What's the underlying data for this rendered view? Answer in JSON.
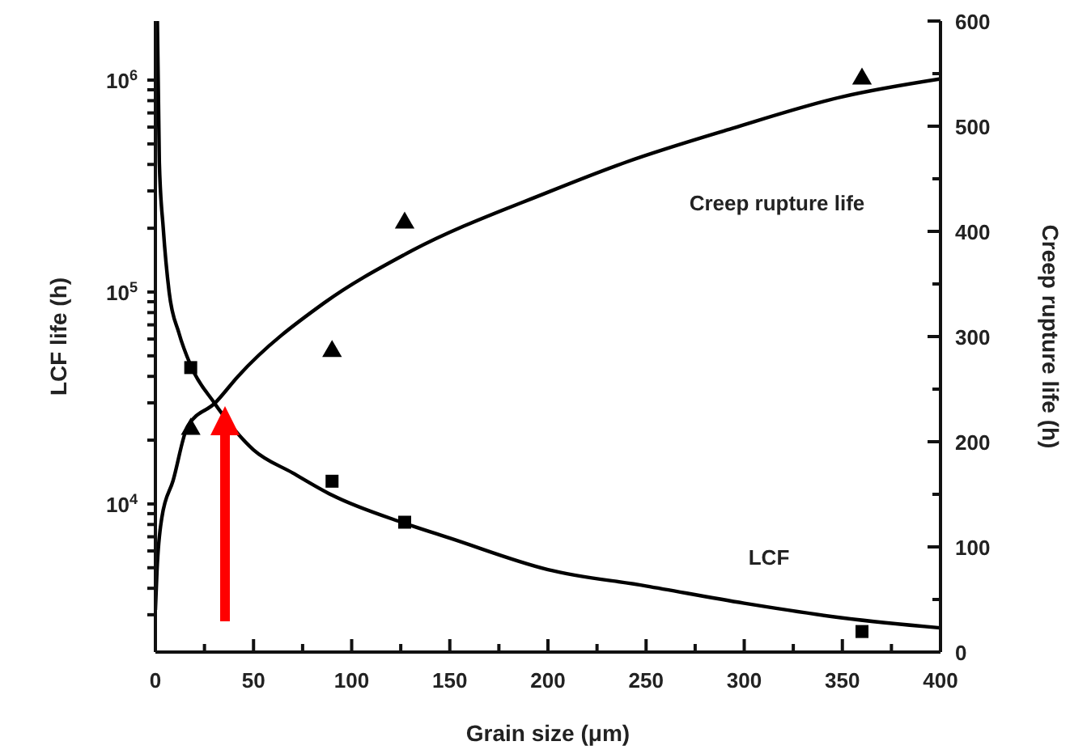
{
  "chart_data": {
    "type": "line",
    "xlabel": "Grain size (μm)",
    "ylabel": "LCF life (h)",
    "y2label": "Creep rupture life (h)",
    "xlim": [
      0,
      400
    ],
    "xticks": [
      0,
      {
        "value": 25,
        "label": null
      },
      50,
      {
        "value": 75,
        "label": null
      },
      100,
      {
        "value": 125,
        "label": null
      },
      150,
      {
        "value": 175,
        "label": null
      },
      200,
      {
        "value": 225,
        "label": null
      },
      250,
      {
        "value": 275,
        "label": null
      },
      300,
      {
        "value": 325,
        "label": null
      },
      350,
      {
        "value": 375,
        "label": null
      },
      400
    ],
    "log": "y",
    "ylim": [
      2000,
      1900000
    ],
    "yticks": [
      {
        "value": 3000,
        "label": null
      },
      {
        "value": 4000,
        "label": null
      },
      {
        "value": 5000,
        "label": null
      },
      {
        "value": 6000,
        "label": null
      },
      {
        "value": 7000,
        "label": null
      },
      {
        "value": 8000,
        "label": null
      },
      {
        "value": 9000,
        "label": null
      },
      {
        "value": 10000,
        "label": "10$^{4}$"
      },
      {
        "value": 20000,
        "label": null
      },
      {
        "value": 30000,
        "label": null
      },
      {
        "value": 40000,
        "label": null
      },
      {
        "value": 50000,
        "label": null
      },
      {
        "value": 60000,
        "label": null
      },
      {
        "value": 70000,
        "label": null
      },
      {
        "value": 80000,
        "label": null
      },
      {
        "value": 90000,
        "label": null
      },
      {
        "value": 100000,
        "label": "10$^{5}$"
      },
      {
        "value": 200000,
        "label": null
      },
      {
        "value": 300000,
        "label": null
      },
      {
        "value": 400000,
        "label": null
      },
      {
        "value": 500000,
        "label": null
      },
      {
        "value": 600000,
        "label": null
      },
      {
        "value": 700000,
        "label": null
      },
      {
        "value": 800000,
        "label": null
      },
      {
        "value": 900000,
        "label": null
      },
      {
        "value": 1000000,
        "label": "10$^{6}$"
      }
    ],
    "y2lim": [
      0,
      600
    ],
    "y2ticks": [
      0,
      {
        "value": 50,
        "label": null
      },
      100,
      {
        "value": 150,
        "label": null
      },
      200,
      {
        "value": 250,
        "label": null
      },
      300,
      {
        "value": 350,
        "label": null
      },
      400,
      {
        "value": 450,
        "label": null
      },
      500,
      {
        "value": 550,
        "label": null
      },
      600
    ],
    "grid": false,
    "legend": false,
    "series": [
      {
        "name": "Creep rupture life",
        "type": "line",
        "axis": "y2",
        "color": "#000000",
        "marker": "none",
        "x": [
          0,
          0.8,
          3.3,
          9,
          16.5,
          30.5,
          42,
          86,
          127,
          201,
          240,
          294,
          350,
          400
        ],
        "values": [
          40,
          77,
          128,
          163,
          215,
          237,
          262,
          332,
          378,
          438,
          466,
          498,
          528,
          545
        ]
      },
      {
        "name": "LCF",
        "type": "line",
        "axis": "y",
        "color": "#000000",
        "marker": "none",
        "x": [
          1,
          2,
          4,
          7,
          12,
          18,
          30,
          50,
          70,
          90,
          127,
          150,
          200,
          250,
          300,
          350,
          400
        ],
        "values": [
          1900000,
          410000,
          200000,
          100000,
          64000,
          45000,
          30000,
          18000,
          14000,
          11000,
          8100,
          6900,
          4900,
          4100,
          3400,
          2900,
          2600
        ]
      },
      {
        "type": "scatter",
        "axis": "y2",
        "color": "#000000",
        "marker": "triangle",
        "x": [
          18,
          90,
          127,
          360
        ],
        "values": [
          212,
          286,
          408,
          545
        ]
      },
      {
        "type": "scatter",
        "axis": "y",
        "color": "#000000",
        "marker": "square",
        "x": [
          18,
          90,
          127,
          360
        ],
        "values": [
          44000,
          12800,
          8200,
          2500
        ]
      }
    ]
  }
}
